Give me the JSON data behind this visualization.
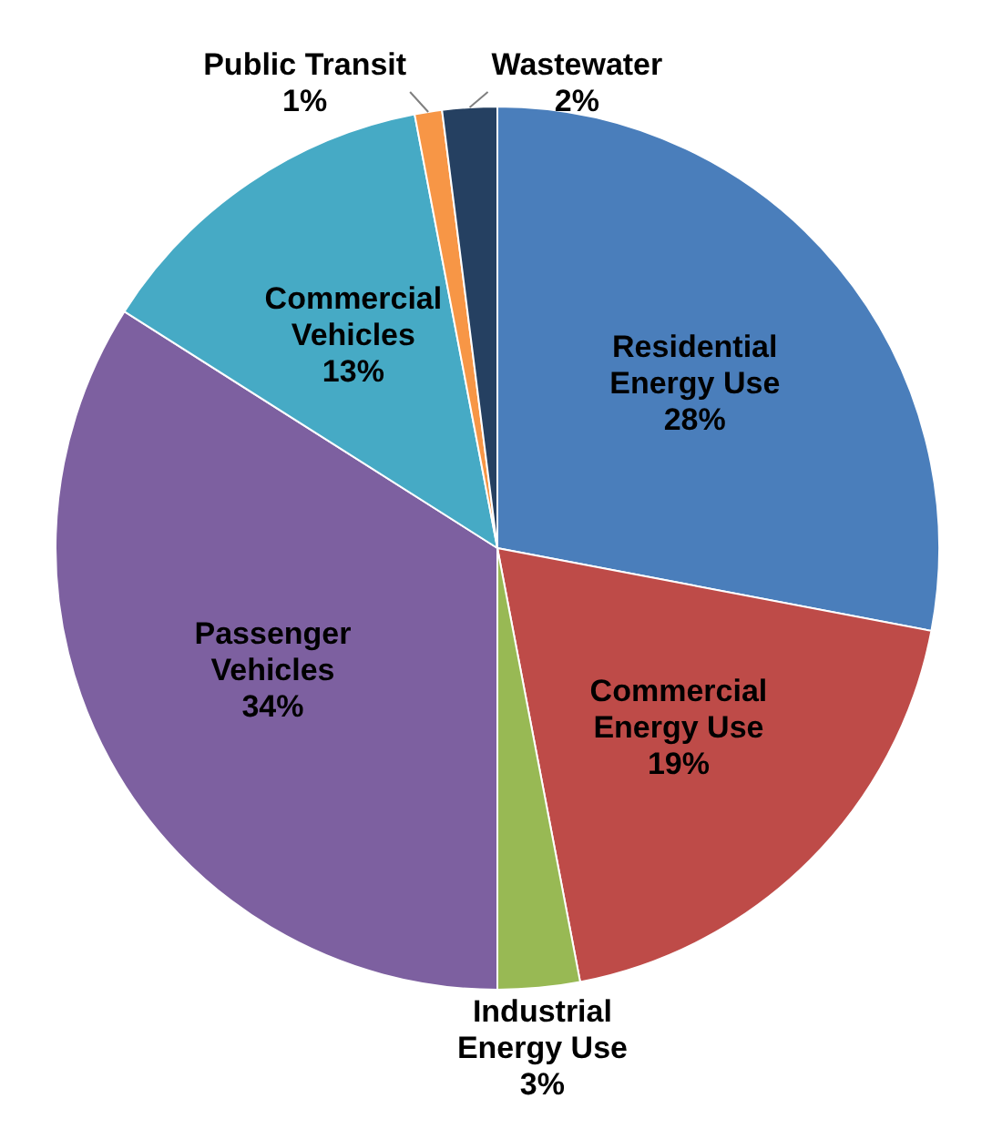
{
  "chart_data": {
    "type": "pie",
    "categories": [
      "Residential Energy Use",
      "Commercial Energy Use",
      "Industrial Energy Use",
      "Passenger Vehicles",
      "Commercial Vehicles",
      "Public Transit",
      "Wastewater"
    ],
    "values": [
      28,
      19,
      3,
      34,
      13,
      1,
      2
    ],
    "colors": [
      "#4a7ebb",
      "#be4b48",
      "#98b954",
      "#7d60a0",
      "#46aac5",
      "#f79646",
      "#254061"
    ],
    "value_labels": [
      "28%",
      "19%",
      "3%",
      "34%",
      "13%",
      "1%",
      "2%"
    ],
    "legend": false
  }
}
